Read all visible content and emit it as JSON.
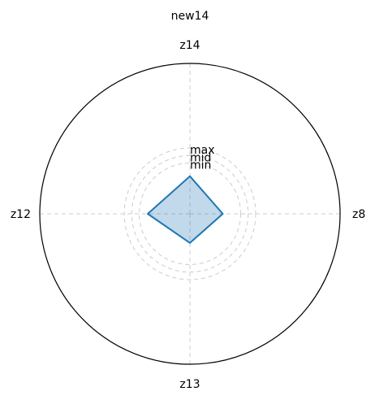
{
  "chart_data": {
    "type": "radar",
    "title": "new14",
    "axes": [
      "z14",
      "z8",
      "z13",
      "z12"
    ],
    "values": [
      0.4,
      0.35,
      0.31,
      0.45
    ],
    "ring_levels": [
      0.7,
      0.62,
      0.54
    ],
    "ring_labels": [
      "max",
      "mid",
      "min"
    ],
    "r_range": [
      0,
      1.6
    ],
    "grid": true,
    "colors": {
      "line": "#1f77b4",
      "fill": "#1f77b4",
      "outer_circle": "#000000",
      "grid": "#cccccc"
    }
  }
}
